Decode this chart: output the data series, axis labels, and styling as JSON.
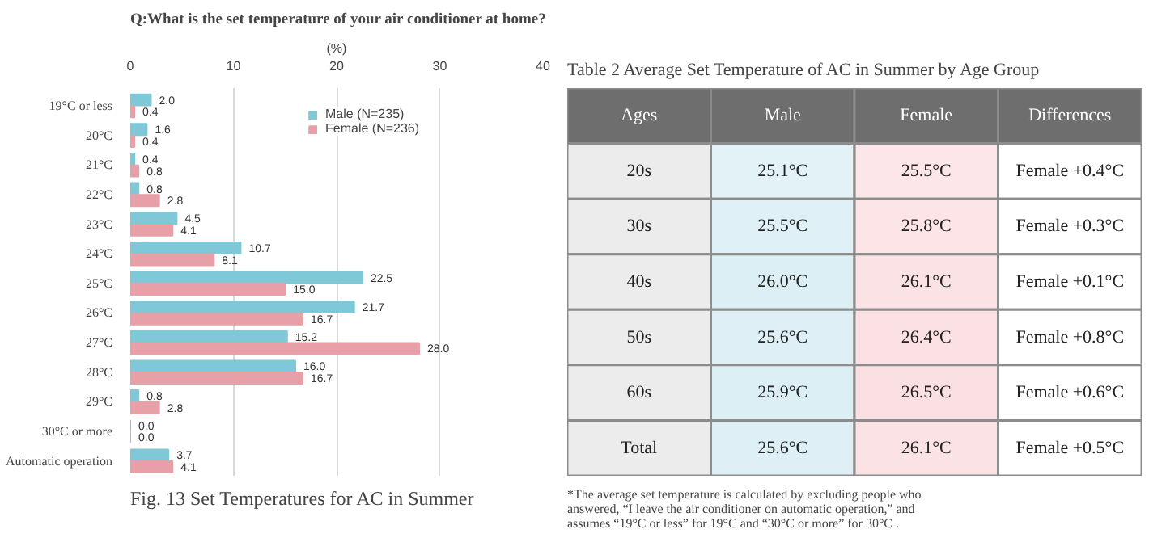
{
  "chart_data": [
    {
      "type": "bar",
      "orientation": "horizontal",
      "title": "Q:What is the set temperature of your air conditioner at home?",
      "xlabel": "(%)",
      "categories": [
        "19°C or less",
        "20°C",
        "21°C",
        "22°C",
        "23°C",
        "24°C",
        "25°C",
        "26°C",
        "27°C",
        "28°C",
        "29°C",
        "30°C or more",
        "Automatic operation"
      ],
      "series": [
        {
          "name": "Male (N=235)",
          "color": "#7ec8d8",
          "values": [
            2.0,
            1.6,
            0.4,
            0.8,
            4.5,
            10.7,
            22.5,
            21.7,
            15.2,
            16.0,
            0.8,
            0.0,
            3.7
          ],
          "value_labels": [
            "2.0",
            "1.6",
            "0.4",
            "0.8",
            "4.5",
            "10.7",
            "22.5",
            "21.7",
            "15.2",
            "16.0",
            "0.8",
            "0.0",
            "3.7"
          ]
        },
        {
          "name": "Female (N=236)",
          "color": "#e8a0a8",
          "values": [
            0.4,
            0.4,
            0.8,
            2.8,
            4.1,
            8.1,
            15.0,
            16.7,
            28.0,
            16.7,
            2.8,
            0.0,
            4.1
          ],
          "value_labels": [
            "0.4",
            "0.4",
            "0.8",
            "2.8",
            "4.1",
            "8.1",
            "15.0",
            "16.7",
            "28.0",
            "16.7",
            "2.8",
            "0.0",
            "4.1"
          ]
        }
      ],
      "xlim": [
        0,
        40
      ],
      "xticks": [
        0,
        10,
        20,
        30,
        40
      ],
      "grid": "x",
      "legend": "top right",
      "annotations": [
        "Fig. 13   Set Temperatures for AC in Summer"
      ]
    },
    {
      "type": "heatmap",
      "title": "Table 2   Average Set Temperature of AC in Summer by Age Group",
      "ylabel": "Ages",
      "categories": [
        "Male",
        "Female",
        "Differences"
      ],
      "y_categories": [
        "20s",
        "30s",
        "40s",
        "50s",
        "60s",
        "Total"
      ],
      "colors": [
        "#dbeff5",
        "#fbe0e3",
        "#ffffff"
      ],
      "cells": [
        [
          25.1,
          25.5,
          0.4
        ],
        [
          25.5,
          25.8,
          0.3
        ],
        [
          26.0,
          26.1,
          0.1
        ],
        [
          25.6,
          26.4,
          0.8
        ],
        [
          25.9,
          26.5,
          0.6
        ],
        [
          25.6,
          26.1,
          0.5
        ]
      ],
      "cell_labels": [
        [
          "25.1°C",
          "25.5°C",
          "Female +0.4°C"
        ],
        [
          "25.5°C",
          "25.8°C",
          "Female +0.3°C"
        ],
        [
          "26.0°C",
          "26.1°C",
          "Female +0.1°C"
        ],
        [
          "25.6°C",
          "26.4°C",
          "Female +0.8°C"
        ],
        [
          "25.9°C",
          "26.5°C",
          "Female +0.6°C"
        ],
        [
          "25.6°C",
          "26.1°C",
          "Female +0.5°C"
        ]
      ],
      "annotations": [
        "*The average set temperature is calculated by excluding people who\n  answered, “I leave the air conditioner on automatic operation,” and\n  assumes  “19°C or less” for  19°C and “30°C or more” for 30°C ."
      ]
    }
  ]
}
